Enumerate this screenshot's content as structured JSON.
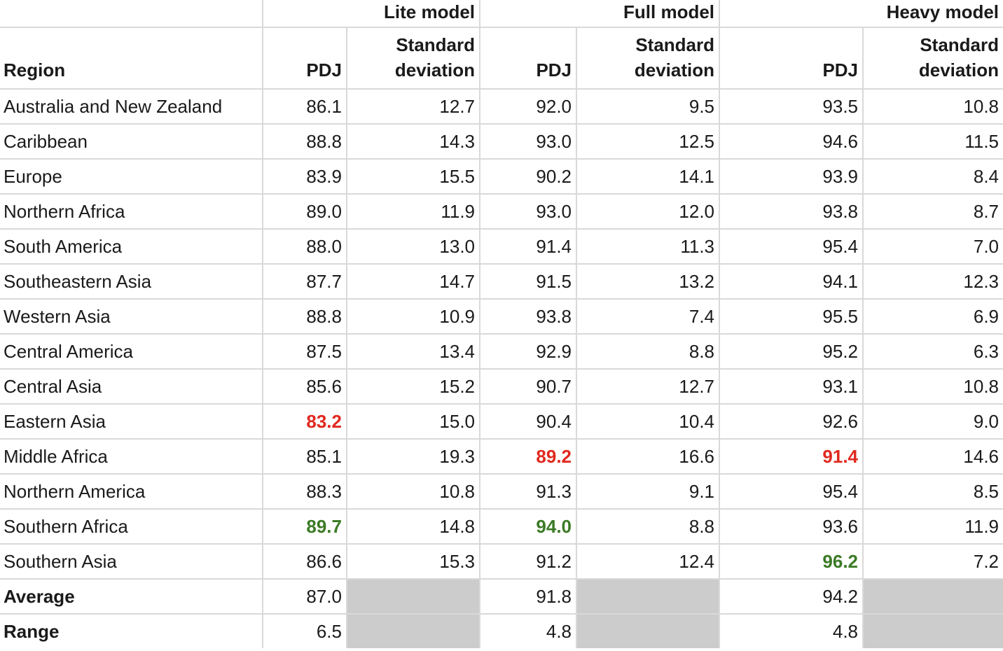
{
  "header": {
    "region": "Region",
    "groups": [
      "Lite model",
      "Full model",
      "Heavy model"
    ],
    "pdj": "PDJ",
    "std": "Standard deviation"
  },
  "rows": [
    {
      "region": "Australia and New Zealand",
      "v": [
        "86.1",
        "12.7",
        "92.0",
        "9.5",
        "93.5",
        "10.8"
      ]
    },
    {
      "region": "Caribbean",
      "v": [
        "88.8",
        "14.3",
        "93.0",
        "12.5",
        "94.6",
        "11.5"
      ]
    },
    {
      "region": "Europe",
      "v": [
        "83.9",
        "15.5",
        "90.2",
        "14.1",
        "93.9",
        "8.4"
      ]
    },
    {
      "region": "Northern Africa",
      "v": [
        "89.0",
        "11.9",
        "93.0",
        "12.0",
        "93.8",
        "8.7"
      ]
    },
    {
      "region": "South America",
      "v": [
        "88.0",
        "13.0",
        "91.4",
        "11.3",
        "95.4",
        "7.0"
      ]
    },
    {
      "region": "Southeastern Asia",
      "v": [
        "87.7",
        "14.7",
        "91.5",
        "13.2",
        "94.1",
        "12.3"
      ]
    },
    {
      "region": "Western Asia",
      "v": [
        "88.8",
        "10.9",
        "93.8",
        "7.4",
        "95.5",
        "6.9"
      ]
    },
    {
      "region": "Central America",
      "v": [
        "87.5",
        "13.4",
        "92.9",
        "8.8",
        "95.2",
        "6.3"
      ]
    },
    {
      "region": "Central Asia",
      "v": [
        "85.6",
        "15.2",
        "90.7",
        "12.7",
        "93.1",
        "10.8"
      ]
    },
    {
      "region": "Eastern Asia",
      "v": [
        "83.2",
        "15.0",
        "90.4",
        "10.4",
        "92.6",
        "9.0"
      ],
      "low": [
        0
      ]
    },
    {
      "region": "Middle Africa",
      "v": [
        "85.1",
        "19.3",
        "89.2",
        "16.6",
        "91.4",
        "14.6"
      ],
      "low": [
        2,
        4
      ]
    },
    {
      "region": "Northern America",
      "v": [
        "88.3",
        "10.8",
        "91.3",
        "9.1",
        "95.4",
        "8.5"
      ]
    },
    {
      "region": "Southern Africa",
      "v": [
        "89.7",
        "14.8",
        "94.0",
        "8.8",
        "93.6",
        "11.9"
      ],
      "high": [
        0,
        2
      ]
    },
    {
      "region": "Southern Asia",
      "v": [
        "86.6",
        "15.3",
        "91.2",
        "12.4",
        "96.2",
        "7.2"
      ],
      "high": [
        4
      ]
    }
  ],
  "summary": [
    {
      "label": "Average",
      "v": [
        "87.0",
        "91.8",
        "94.2"
      ]
    },
    {
      "label": "Range",
      "v": [
        "6.5",
        "4.8",
        "4.8"
      ]
    }
  ],
  "colors": {
    "lowest": "#e0291f",
    "highest": "#3b7a25",
    "empty_cell": "#cccccc",
    "grid": "#d9d9d9"
  }
}
